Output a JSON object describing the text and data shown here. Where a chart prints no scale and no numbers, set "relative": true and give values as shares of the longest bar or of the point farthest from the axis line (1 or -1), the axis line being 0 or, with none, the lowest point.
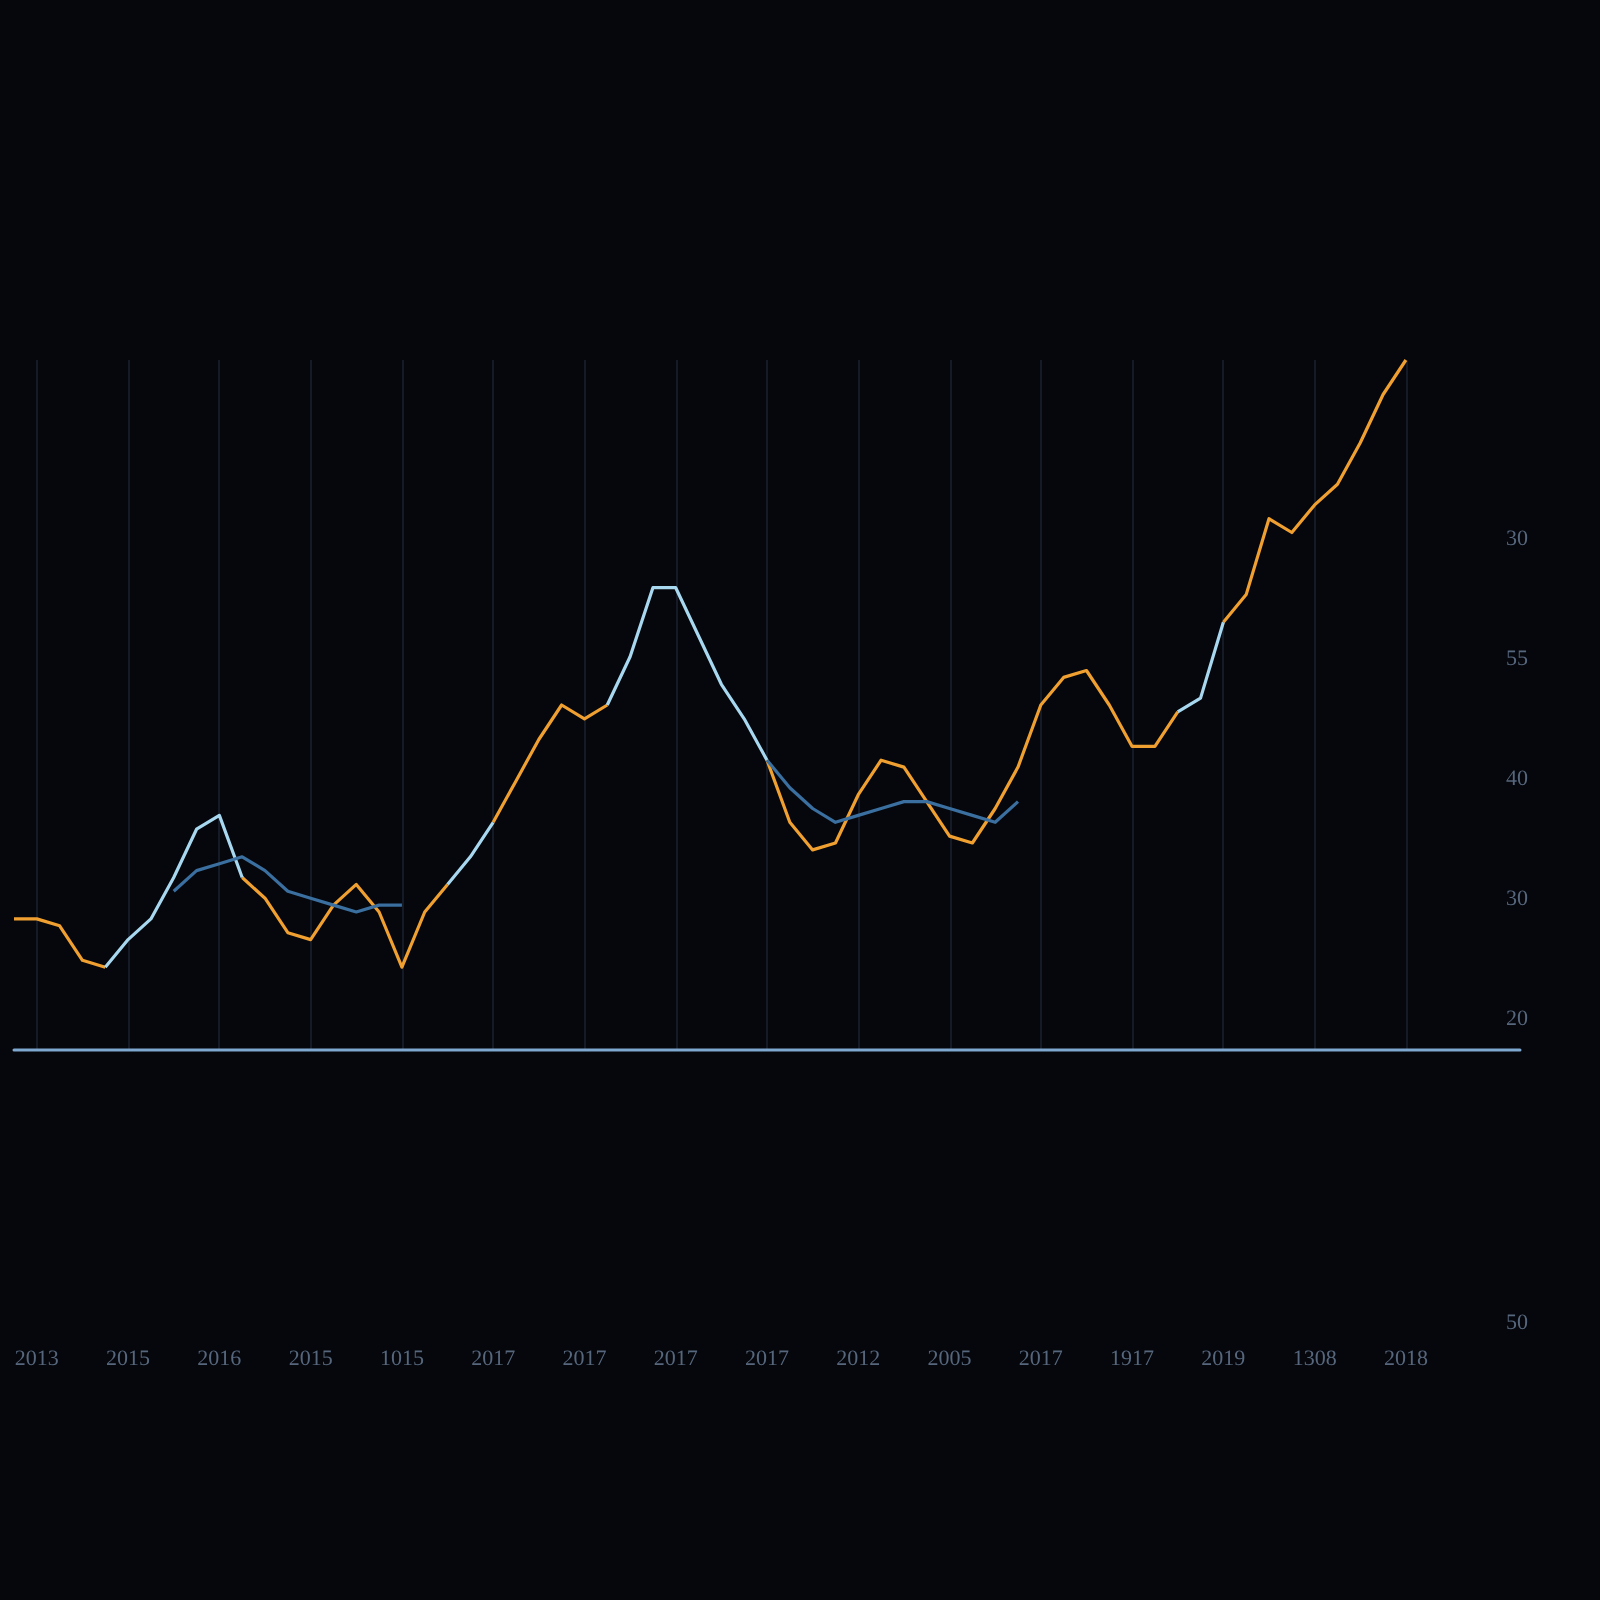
{
  "chart_data": {
    "type": "line",
    "relative": true,
    "grid": "x",
    "categories": [
      null,
      "2013",
      null,
      null,
      null,
      "2015",
      null,
      null,
      null,
      "2016",
      null,
      null,
      null,
      "2015",
      null,
      null,
      null,
      "1015",
      null,
      null,
      null,
      "2017",
      null,
      null,
      null,
      "2017",
      null,
      null,
      null,
      "2017",
      null,
      null,
      null,
      "2017",
      null,
      null,
      null,
      "2012",
      null,
      null,
      null,
      "2005",
      null,
      null,
      null,
      "2017",
      null,
      null,
      null,
      "1917",
      null,
      null,
      null,
      "2019",
      null,
      null,
      null,
      "1308",
      null,
      null,
      null,
      "2018",
      null,
      null,
      null,
      null,
      null
    ],
    "annotations": [
      "30",
      "55",
      "40",
      "30",
      "20",
      "50"
    ],
    "series": [
      {
        "color": "#f0a030",
        "values": [
          0.19,
          0.19,
          0.18,
          0.13,
          0.12,
          null,
          null,
          null,
          null,
          null,
          0.25,
          0.22,
          0.17,
          0.16,
          0.21,
          0.24,
          0.2,
          0.12,
          0.2,
          0.24,
          null,
          0.33,
          0.39,
          0.45,
          0.5,
          0.48,
          0.5,
          null,
          null,
          null,
          null,
          null,
          null,
          0.42,
          0.33,
          0.29,
          0.3,
          0.37,
          0.42,
          0.41,
          0.36,
          0.31,
          0.3,
          0.35,
          0.41,
          0.5,
          0.54,
          0.55,
          0.5,
          0.44,
          0.44,
          0.49,
          null,
          0.62,
          0.66,
          0.77,
          0.75,
          0.79,
          0.82,
          0.88,
          0.95,
          1,
          null,
          null,
          null,
          null,
          null
        ]
      },
      {
        "color": "#a8d8f0",
        "values": [
          null,
          null,
          null,
          null,
          0.12,
          0.16,
          0.19,
          0.25,
          0.32,
          0.34,
          0.25,
          null,
          null,
          null,
          null,
          null,
          null,
          null,
          null,
          0.24,
          0.28,
          0.33,
          null,
          null,
          null,
          null,
          0.5,
          0.57,
          0.67,
          0.67,
          0.6,
          0.53,
          0.48,
          0.42,
          null,
          null,
          null,
          null,
          null,
          null,
          null,
          null,
          null,
          null,
          null,
          null,
          null,
          null,
          null,
          null,
          null,
          0.49,
          0.51,
          0.62,
          null,
          null,
          null,
          null,
          null,
          null,
          null,
          null,
          null,
          null,
          null,
          null,
          null
        ]
      },
      {
        "color": "#3a6fa0",
        "values": [
          null,
          null,
          null,
          null,
          null,
          null,
          null,
          0.23,
          0.26,
          0.27,
          0.28,
          0.26,
          0.23,
          0.22,
          0.21,
          0.2,
          0.21,
          0.21,
          null,
          null,
          null,
          null,
          null,
          null,
          null,
          null,
          null,
          null,
          null,
          null,
          null,
          null,
          null,
          0.42,
          0.38,
          0.35,
          0.33,
          0.34,
          0.35,
          0.36,
          0.36,
          0.35,
          0.34,
          0.33,
          0.36,
          null,
          null,
          null,
          null,
          null,
          null,
          null,
          null,
          null,
          null,
          null,
          null,
          null,
          null,
          null,
          null,
          null,
          null,
          null,
          null,
          null,
          null
        ]
      }
    ]
  }
}
